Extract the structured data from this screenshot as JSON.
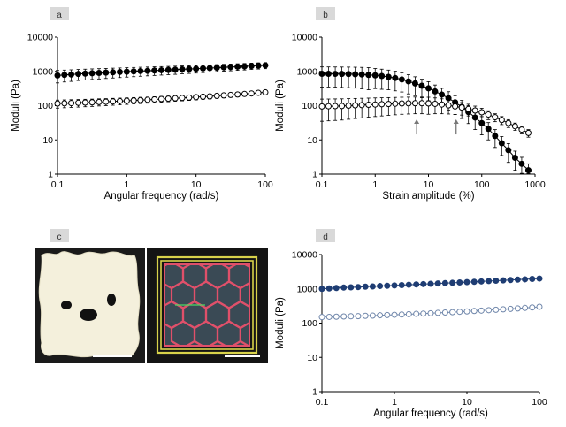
{
  "panels": {
    "a": {
      "letter": "a"
    },
    "b": {
      "letter": "b"
    },
    "c": {
      "letter": "c"
    },
    "d": {
      "letter": "d"
    }
  },
  "colors": {
    "black_series": "#000000",
    "blue_series": "#1f3d73",
    "light_blue_series": "#6f86aa",
    "gel_white": "#f4f0dc",
    "grid_pink": "#e0506a",
    "frame_yellow": "#d8d24a",
    "dark_background": "#1a1a1a"
  },
  "chart_data": [
    {
      "panel": "a",
      "type": "scatter",
      "xlabel": "Angular frequency (rad/s)",
      "ylabel": "Moduli (Pa)",
      "xscale": "log",
      "yscale": "log",
      "xlim": [
        0.1,
        100
      ],
      "ylim": [
        1,
        10000
      ],
      "xticks": [
        "0.1",
        "1",
        "10",
        "100"
      ],
      "yticks": [
        "1",
        "10",
        "100",
        "1000",
        "10000"
      ],
      "series": [
        {
          "marker": "filled-circle",
          "color": "#000000",
          "error_bars": true,
          "x": [
            0.1,
            0.126,
            0.158,
            0.2,
            0.251,
            0.316,
            0.398,
            0.501,
            0.631,
            0.794,
            1,
            1.26,
            1.58,
            2,
            2.51,
            3.16,
            3.98,
            5.01,
            6.31,
            7.94,
            10,
            12.6,
            15.8,
            20,
            25.1,
            31.6,
            39.8,
            50.1,
            63.1,
            79.4,
            100
          ],
          "y": [
            760,
            790,
            810,
            840,
            860,
            880,
            900,
            920,
            940,
            960,
            980,
            1000,
            1020,
            1040,
            1060,
            1080,
            1100,
            1120,
            1150,
            1170,
            1190,
            1220,
            1250,
            1280,
            1310,
            1340,
            1370,
            1400,
            1440,
            1470,
            1500
          ],
          "err": [
            300,
            300,
            300,
            300,
            300,
            300,
            300,
            300,
            300,
            300,
            300,
            300,
            300,
            300,
            300,
            300,
            300,
            300,
            300,
            300,
            300,
            300,
            300,
            300,
            300,
            300,
            300,
            300,
            300,
            300,
            300
          ]
        },
        {
          "marker": "open-circle",
          "color": "#000000",
          "error_bars": true,
          "x": [
            0.1,
            0.126,
            0.158,
            0.2,
            0.251,
            0.316,
            0.398,
            0.501,
            0.631,
            0.794,
            1,
            1.26,
            1.58,
            2,
            2.51,
            3.16,
            3.98,
            5.01,
            6.31,
            7.94,
            10,
            12.6,
            15.8,
            20,
            25.1,
            31.6,
            39.8,
            50.1,
            63.1,
            79.4,
            100
          ],
          "y": [
            115,
            117,
            119,
            121,
            123,
            125,
            128,
            130,
            133,
            136,
            139,
            142,
            145,
            148,
            152,
            156,
            160,
            164,
            168,
            172,
            177,
            182,
            187,
            193,
            199,
            205,
            212,
            219,
            227,
            236,
            245
          ],
          "err": [
            30,
            30,
            30,
            30,
            30,
            30,
            30,
            30,
            30,
            30,
            30,
            30,
            30,
            30,
            30,
            30,
            30,
            30,
            30,
            30,
            30,
            30,
            30,
            30,
            30,
            30,
            30,
            30,
            30,
            30,
            30
          ]
        }
      ]
    },
    {
      "panel": "b",
      "type": "scatter",
      "xlabel": "Strain amplitude (%)",
      "ylabel": "Moduli (Pa)",
      "xscale": "log",
      "yscale": "log",
      "xlim": [
        0.1,
        1000
      ],
      "ylim": [
        1,
        10000
      ],
      "xticks": [
        "0.1",
        "1",
        "10",
        "100",
        "1000"
      ],
      "yticks": [
        "1",
        "10",
        "100",
        "1000",
        "10000"
      ],
      "arrows_at_x": [
        6,
        33
      ],
      "series": [
        {
          "marker": "filled-circle",
          "color": "#000000",
          "error_bars": true,
          "x": [
            0.1,
            0.133,
            0.178,
            0.237,
            0.316,
            0.422,
            0.562,
            0.75,
            1,
            1.33,
            1.78,
            2.37,
            3.16,
            4.22,
            5.62,
            7.5,
            10,
            13.3,
            17.8,
            23.7,
            31.6,
            42.2,
            56.2,
            75,
            100,
            133,
            178,
            237,
            316,
            422,
            562,
            750
          ],
          "y": [
            850,
            850,
            845,
            840,
            835,
            825,
            810,
            790,
            765,
            730,
            690,
            640,
            580,
            510,
            445,
            380,
            320,
            260,
            210,
            165,
            125,
            92,
            65,
            45,
            31,
            21,
            13,
            8,
            5,
            3,
            2,
            1.3
          ],
          "err": [
            500,
            500,
            500,
            500,
            500,
            500,
            500,
            500,
            450,
            430,
            400,
            370,
            330,
            290,
            250,
            210,
            180,
            140,
            110,
            90,
            70,
            50,
            35,
            25,
            17,
            11,
            7,
            4.5,
            2.8,
            1.7,
            1.1,
            0.7
          ]
        },
        {
          "marker": "open-circle",
          "color": "#000000",
          "error_bars": true,
          "x": [
            0.1,
            0.133,
            0.178,
            0.237,
            0.316,
            0.422,
            0.562,
            0.75,
            1,
            1.33,
            1.78,
            2.37,
            3.16,
            4.22,
            5.62,
            7.5,
            10,
            13.3,
            17.8,
            23.7,
            31.6,
            42.2,
            56.2,
            75,
            100,
            133,
            178,
            237,
            316,
            422,
            562,
            750
          ],
          "y": [
            95,
            96,
            97,
            98,
            100,
            102,
            104,
            106,
            108,
            110,
            112,
            114,
            116,
            117,
            118,
            118,
            116,
            113,
            108,
            102,
            95,
            88,
            80,
            72,
            64,
            55,
            46,
            38,
            31,
            25,
            20,
            16
          ],
          "err": [
            60,
            60,
            60,
            60,
            60,
            60,
            60,
            60,
            60,
            60,
            60,
            60,
            60,
            60,
            60,
            60,
            60,
            55,
            50,
            45,
            40,
            35,
            30,
            25,
            20,
            16,
            12,
            10,
            8,
            6,
            5,
            4
          ]
        }
      ]
    },
    {
      "panel": "d",
      "type": "scatter",
      "xlabel": "Angular frequency (rad/s)",
      "ylabel": "Moduli (Pa)",
      "xscale": "log",
      "yscale": "log",
      "xlim": [
        0.1,
        100
      ],
      "ylim": [
        1,
        10000
      ],
      "xticks": [
        "0.1",
        "1",
        "10",
        "100"
      ],
      "yticks": [
        "1",
        "10",
        "100",
        "1000",
        "10000"
      ],
      "series": [
        {
          "marker": "filled-circle",
          "color": "#1f3d73",
          "error_bars": false,
          "x": [
            0.1,
            0.126,
            0.158,
            0.2,
            0.251,
            0.316,
            0.398,
            0.501,
            0.631,
            0.794,
            1,
            1.26,
            1.58,
            2,
            2.51,
            3.16,
            3.98,
            5.01,
            6.31,
            7.94,
            10,
            12.6,
            15.8,
            20,
            25.1,
            31.6,
            39.8,
            50.1,
            63.1,
            79.4,
            100
          ],
          "y": [
            1000,
            1030,
            1060,
            1090,
            1110,
            1130,
            1160,
            1180,
            1210,
            1230,
            1260,
            1290,
            1320,
            1350,
            1380,
            1410,
            1440,
            1470,
            1500,
            1540,
            1570,
            1610,
            1650,
            1690,
            1730,
            1770,
            1810,
            1860,
            1900,
            1950,
            2000
          ],
          "err": []
        },
        {
          "marker": "open-circle",
          "color": "#6f86aa",
          "error_bars": false,
          "x": [
            0.1,
            0.126,
            0.158,
            0.2,
            0.251,
            0.316,
            0.398,
            0.501,
            0.631,
            0.794,
            1,
            1.26,
            1.58,
            2,
            2.51,
            3.16,
            3.98,
            5.01,
            6.31,
            7.94,
            10,
            12.6,
            15.8,
            20,
            25.1,
            31.6,
            39.8,
            50.1,
            63.1,
            79.4,
            100
          ],
          "y": [
            150,
            152,
            154,
            156,
            158,
            160,
            163,
            166,
            169,
            172,
            175,
            178,
            182,
            186,
            190,
            194,
            199,
            204,
            209,
            214,
            220,
            226,
            232,
            239,
            246,
            253,
            261,
            269,
            278,
            287,
            300
          ],
          "err": []
        }
      ]
    }
  ]
}
